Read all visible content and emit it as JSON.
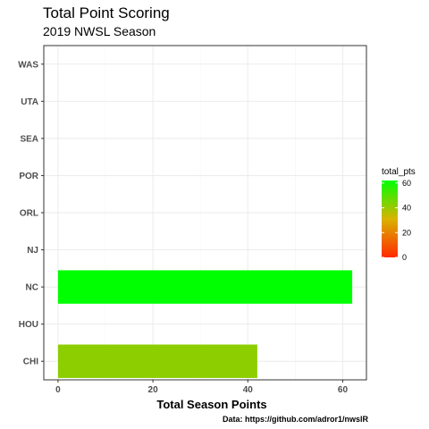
{
  "chart_data": {
    "type": "bar",
    "orientation": "horizontal",
    "title": "Total Point Scoring",
    "subtitle": "2019 NWSL Season",
    "xlabel": "Total Season Points",
    "ylabel": "",
    "caption": "Data: https://github.com/adror1/nwslR",
    "categories": [
      "CHI",
      "HOU",
      "NC",
      "NJ",
      "ORL",
      "POR",
      "SEA",
      "UTA",
      "WAS"
    ],
    "values": [
      42,
      0,
      62,
      0,
      0,
      0,
      0,
      0,
      0
    ],
    "xlim": [
      -3,
      65
    ],
    "xticks": [
      0,
      20,
      40,
      60
    ],
    "grid": true,
    "legend": {
      "title": "total_pts",
      "placement": "right",
      "ticks": [
        0,
        20,
        40,
        60
      ],
      "range": [
        0,
        62
      ],
      "colors": [
        "#ff2a00",
        "#d9b300",
        "#00ff00"
      ]
    }
  }
}
